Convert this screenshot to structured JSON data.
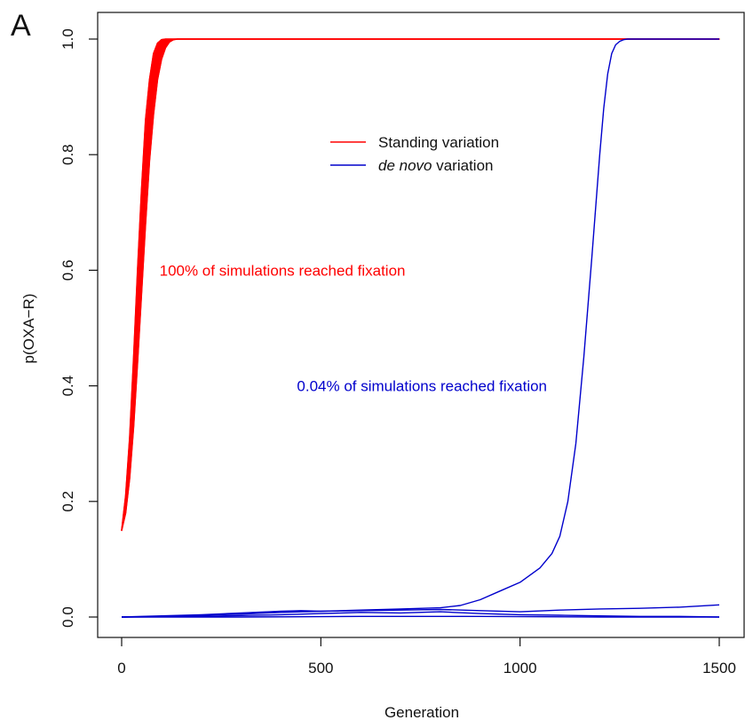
{
  "chart_data": {
    "type": "line",
    "panel_label": "A",
    "xlabel": "Generation",
    "ylabel": "p(OXA−R)",
    "xlim": [
      0,
      1500
    ],
    "ylim": [
      0,
      1
    ],
    "xticks": [
      0,
      500,
      1000,
      1500
    ],
    "yticks": [
      0.0,
      0.2,
      0.4,
      0.6,
      0.8,
      1.0
    ],
    "ytick_labels": [
      "0.0",
      "0.2",
      "0.4",
      "0.6",
      "0.8",
      "1.0"
    ],
    "legend": {
      "position": "top-center",
      "entries": [
        {
          "label": "Standing variation",
          "label_parts": [
            {
              "text": "Standing variation",
              "italic": false
            }
          ],
          "color": "#ff0000"
        },
        {
          "label": "de novo variation",
          "label_parts": [
            {
              "text": "de novo",
              "italic": true
            },
            {
              "text": " variation",
              "italic": false
            }
          ],
          "color": "#0000cc"
        }
      ]
    },
    "annotations": [
      {
        "text": "100% of simulations reached fixation",
        "color": "#ff0000",
        "x": 95,
        "y": 0.6
      },
      {
        "text": "0.04% of simulations reached fixation",
        "color": "#0000cc",
        "x": 440,
        "y": 0.4
      }
    ],
    "series": [
      {
        "group": "Standing variation",
        "color": "#ff0000",
        "note": "many overlapping logistic trajectories (band)",
        "x": [
          0,
          10,
          20,
          30,
          40,
          50,
          60,
          70,
          80,
          90,
          100,
          110,
          120,
          130,
          140,
          150,
          1500
        ],
        "y_lower": [
          0.15,
          0.18,
          0.24,
          0.33,
          0.44,
          0.56,
          0.68,
          0.79,
          0.87,
          0.93,
          0.965,
          0.985,
          0.995,
          0.999,
          1.0,
          1.0,
          1.0
        ],
        "y_upper": [
          0.15,
          0.21,
          0.31,
          0.45,
          0.6,
          0.74,
          0.86,
          0.93,
          0.975,
          0.993,
          0.999,
          1.0,
          1.0,
          1.0,
          1.0,
          1.0,
          1.0
        ]
      },
      {
        "group": "de novo variation",
        "color": "#0000cc",
        "x": [
          0,
          100,
          200,
          300,
          400,
          500,
          600,
          700,
          800,
          850,
          900,
          950,
          1000,
          1050,
          1080,
          1100,
          1120,
          1140,
          1160,
          1180,
          1200,
          1210,
          1220,
          1230,
          1240,
          1250,
          1260,
          1270,
          1280,
          1300,
          1400,
          1500
        ],
        "y": [
          0.0,
          0.001,
          0.003,
          0.005,
          0.008,
          0.01,
          0.012,
          0.014,
          0.016,
          0.02,
          0.03,
          0.045,
          0.06,
          0.085,
          0.11,
          0.14,
          0.2,
          0.3,
          0.45,
          0.62,
          0.8,
          0.88,
          0.94,
          0.975,
          0.99,
          0.996,
          0.999,
          1.0,
          1.0,
          1.0,
          1.0,
          1.0
        ]
      },
      {
        "group": "de novo variation",
        "color": "#0000cc",
        "x": [
          0,
          100,
          200,
          300,
          400,
          450,
          500,
          600,
          700,
          800,
          900,
          1000,
          1100,
          1200,
          1300,
          1400,
          1500
        ],
        "y": [
          0.0,
          0.002,
          0.004,
          0.007,
          0.01,
          0.011,
          0.01,
          0.011,
          0.012,
          0.013,
          0.011,
          0.009,
          0.012,
          0.014,
          0.015,
          0.017,
          0.021
        ]
      },
      {
        "group": "de novo variation",
        "color": "#0000cc",
        "x": [
          0,
          200,
          400,
          500,
          600,
          700,
          800,
          900,
          1000,
          1100,
          1200,
          1300,
          1400,
          1500
        ],
        "y": [
          0.0,
          0.001,
          0.004,
          0.006,
          0.008,
          0.007,
          0.009,
          0.006,
          0.004,
          0.003,
          0.002,
          0.001,
          0.001,
          0.0
        ]
      },
      {
        "group": "de novo variation",
        "color": "#0000cc",
        "x": [
          0,
          300,
          600,
          900,
          1200,
          1500
        ],
        "y": [
          0.0,
          0.0,
          0.001,
          0.001,
          0.0,
          0.0
        ]
      }
    ]
  }
}
